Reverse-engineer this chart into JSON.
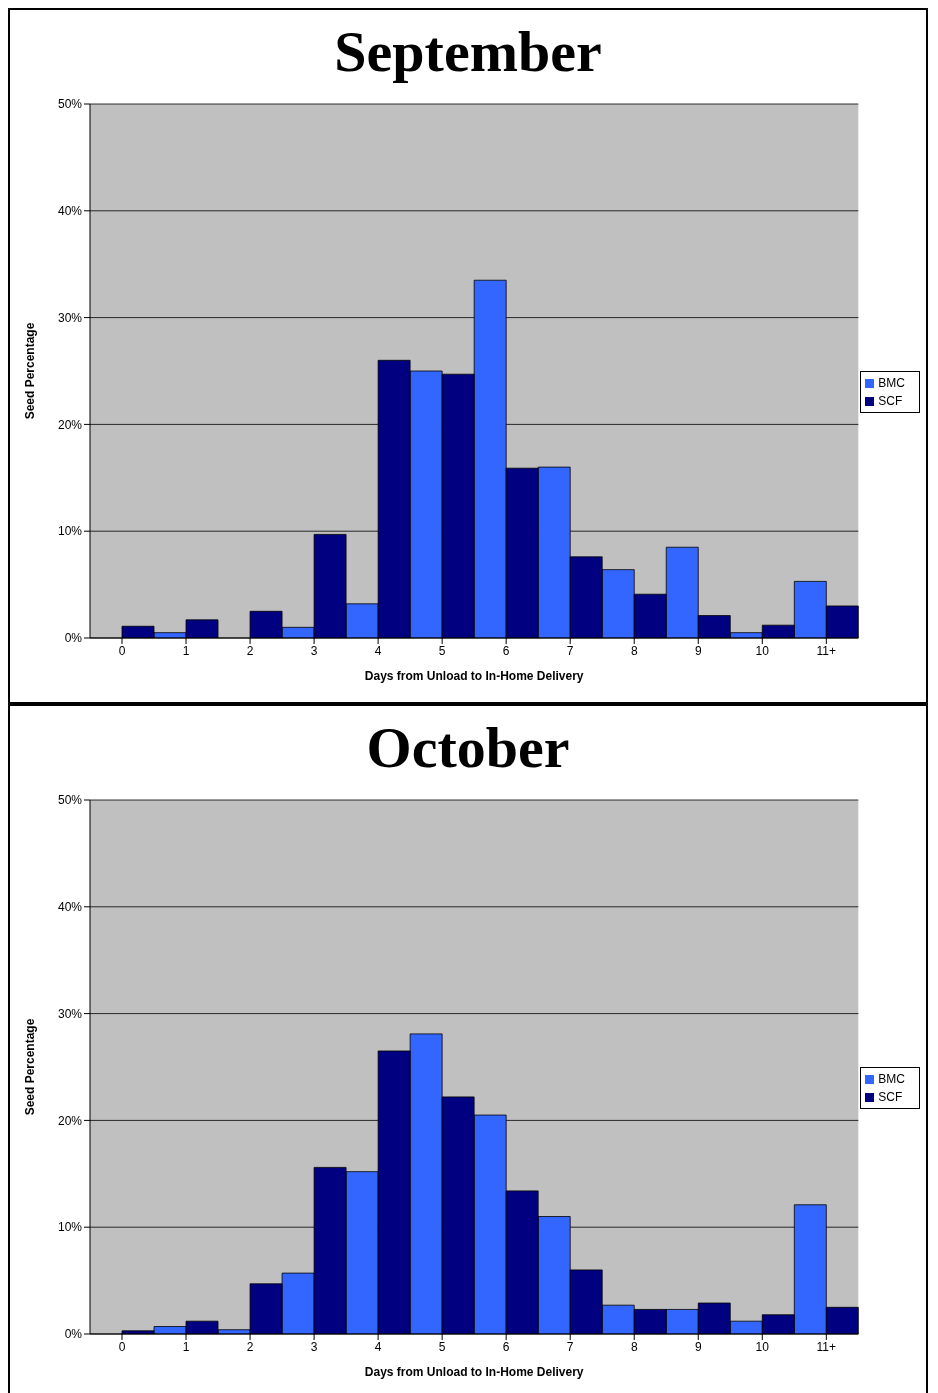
{
  "chart_data": [
    {
      "type": "bar",
      "title": "September",
      "xlabel": "Days from Unload to In-Home Delivery",
      "ylabel": "Seed Percentage",
      "categories": [
        "0",
        "1",
        "2",
        "3",
        "4",
        "5",
        "6",
        "7",
        "8",
        "9",
        "10",
        "11+"
      ],
      "series": [
        {
          "name": "BMC",
          "color": "#3366ff",
          "values": [
            0,
            0.5,
            0,
            1.0,
            3.2,
            25,
            33.5,
            16,
            6.4,
            8.5,
            0.5,
            5.3
          ]
        },
        {
          "name": "SCF",
          "color": "#000080",
          "values": [
            1.1,
            1.7,
            2.5,
            9.7,
            26,
            24.7,
            15.9,
            7.6,
            4.1,
            2.1,
            1.2,
            3.0
          ]
        }
      ],
      "ylim": [
        0,
        50
      ],
      "yticks": [
        {
          "value": 0,
          "label": "0%"
        },
        {
          "value": 10,
          "label": "10%"
        },
        {
          "value": 20,
          "label": "20%"
        },
        {
          "value": 30,
          "label": "30%"
        },
        {
          "value": 40,
          "label": "40%"
        },
        {
          "value": 50,
          "label": "50%"
        }
      ],
      "grid": "y",
      "legend": "right"
    },
    {
      "type": "bar",
      "title": "October",
      "xlabel": "Days from Unload to In-Home Delivery",
      "ylabel": "Seed Percentage",
      "categories": [
        "0",
        "1",
        "2",
        "3",
        "4",
        "5",
        "6",
        "7",
        "8",
        "9",
        "10",
        "11+"
      ],
      "series": [
        {
          "name": "BMC",
          "color": "#3366ff",
          "values": [
            0,
            0.7,
            0.4,
            5.7,
            15.2,
            28.1,
            20.5,
            11,
            2.7,
            2.3,
            1.2,
            12.1
          ]
        },
        {
          "name": "SCF",
          "color": "#000080",
          "values": [
            0.3,
            1.2,
            4.7,
            15.6,
            26.5,
            22.2,
            13.4,
            6.0,
            2.3,
            2.9,
            1.8,
            2.5
          ]
        }
      ],
      "ylim": [
        0,
        50
      ],
      "yticks": [
        {
          "value": 0,
          "label": "0%"
        },
        {
          "value": 10,
          "label": "10%"
        },
        {
          "value": 20,
          "label": "20%"
        },
        {
          "value": 30,
          "label": "30%"
        },
        {
          "value": 40,
          "label": "40%"
        },
        {
          "value": 50,
          "label": "50%"
        }
      ],
      "grid": "y",
      "legend": "right"
    }
  ]
}
